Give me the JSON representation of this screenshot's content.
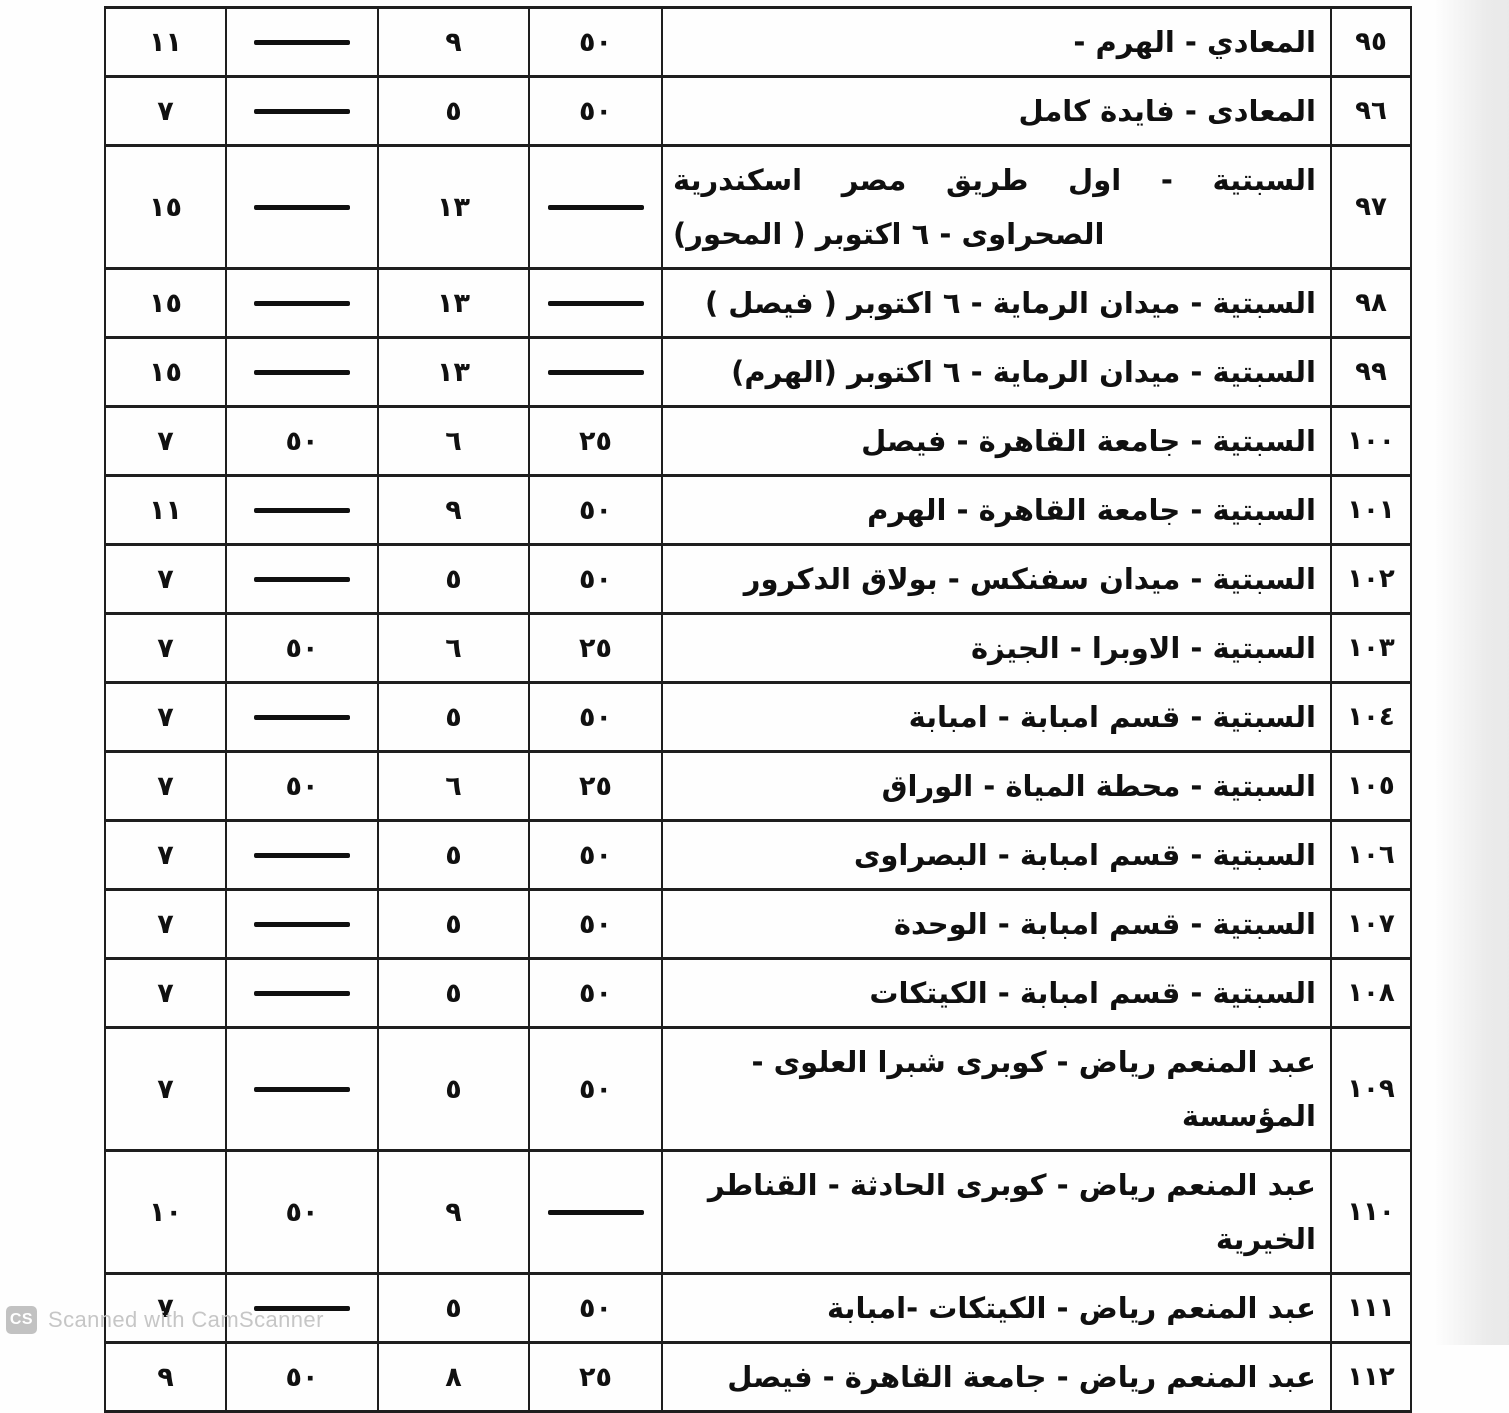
{
  "colors": {
    "border": "#1e1e1e",
    "ink": "#101010",
    "paper": "#fefefe",
    "watermark_text": "#c6c6c6",
    "watermark_badge": "#c2c2c2"
  },
  "table": {
    "direction": "rtl",
    "rows": [
      {
        "no": "٩٥",
        "route": "المعادي - الهرم -",
        "cells": [
          "٥٠",
          "٩",
          "dash",
          "١١"
        ]
      },
      {
        "no": "٩٦",
        "route": "المعادى - فايدة كامل",
        "cells": [
          "٥٠",
          "٥",
          "dash",
          "٧"
        ]
      },
      {
        "no": "٩٧",
        "route": "السبتية - اول طريق مصر اسكندرية الصحراوى - ٦ اكتوبر ( المحور)",
        "cells": [
          "dash",
          "١٣",
          "dash",
          "١٥"
        ]
      },
      {
        "no": "٩٨",
        "route": "السبتية - ميدان الرماية - ٦ اكتوبر ( فيصل )",
        "cells": [
          "dash",
          "١٣",
          "dash",
          "١٥"
        ]
      },
      {
        "no": "٩٩",
        "route": "السبتية - ميدان الرماية - ٦ اكتوبر (الهرم)",
        "cells": [
          "dash",
          "١٣",
          "dash",
          "١٥"
        ]
      },
      {
        "no": "١٠٠",
        "route": "السبتية - جامعة القاهرة - فيصل",
        "cells": [
          "٢٥",
          "٦",
          "٥٠",
          "٧"
        ]
      },
      {
        "no": "١٠١",
        "route": "السبتية - جامعة القاهرة - الهرم",
        "cells": [
          "٥٠",
          "٩",
          "dash",
          "١١"
        ]
      },
      {
        "no": "١٠٢",
        "route": "السبتية - ميدان سفنكس - بولاق الدكرور",
        "cells": [
          "٥٠",
          "٥",
          "dash",
          "٧"
        ]
      },
      {
        "no": "١٠٣",
        "route": "السبتية - الاوبرا - الجيزة",
        "cells": [
          "٢٥",
          "٦",
          "٥٠",
          "٧"
        ]
      },
      {
        "no": "١٠٤",
        "route": "السبتية - قسم امبابة - امبابة",
        "cells": [
          "٥٠",
          "٥",
          "dash",
          "٧"
        ]
      },
      {
        "no": "١٠٥",
        "route": "السبتية - محطة المياة - الوراق",
        "cells": [
          "٢٥",
          "٦",
          "٥٠",
          "٧"
        ]
      },
      {
        "no": "١٠٦",
        "route": "السبتية - قسم امبابة - البصراوى",
        "cells": [
          "٥٠",
          "٥",
          "dash",
          "٧"
        ]
      },
      {
        "no": "١٠٧",
        "route": "السبتية - قسم امبابة - الوحدة",
        "cells": [
          "٥٠",
          "٥",
          "dash",
          "٧"
        ]
      },
      {
        "no": "١٠٨",
        "route": "السبتية - قسم امبابة - الكيتكات",
        "cells": [
          "٥٠",
          "٥",
          "dash",
          "٧"
        ]
      },
      {
        "no": "١٠٩",
        "route": "عبد المنعم رياض - كوبرى شبرا العلوى - المؤسسة",
        "cells": [
          "٥٠",
          "٥",
          "dash",
          "٧"
        ]
      },
      {
        "no": "١١٠",
        "route": "عبد المنعم رياض - كوبرى الحادثة - القناطر الخيرية",
        "cells": [
          "dash",
          "٩",
          "٥٠",
          "١٠"
        ]
      },
      {
        "no": "١١١",
        "route": "عبد المنعم رياض - الكيتكات -امبابة",
        "cells": [
          "٥٠",
          "٥",
          "dash",
          "٧"
        ]
      },
      {
        "no": "١١٢",
        "route": "عبد المنعم رياض - جامعة القاهرة - فيصل",
        "cells": [
          "٢٥",
          "٨",
          "٥٠",
          "٩"
        ]
      }
    ]
  },
  "watermark": {
    "badge_label": "CS",
    "text": "Scanned with CamScanner"
  }
}
